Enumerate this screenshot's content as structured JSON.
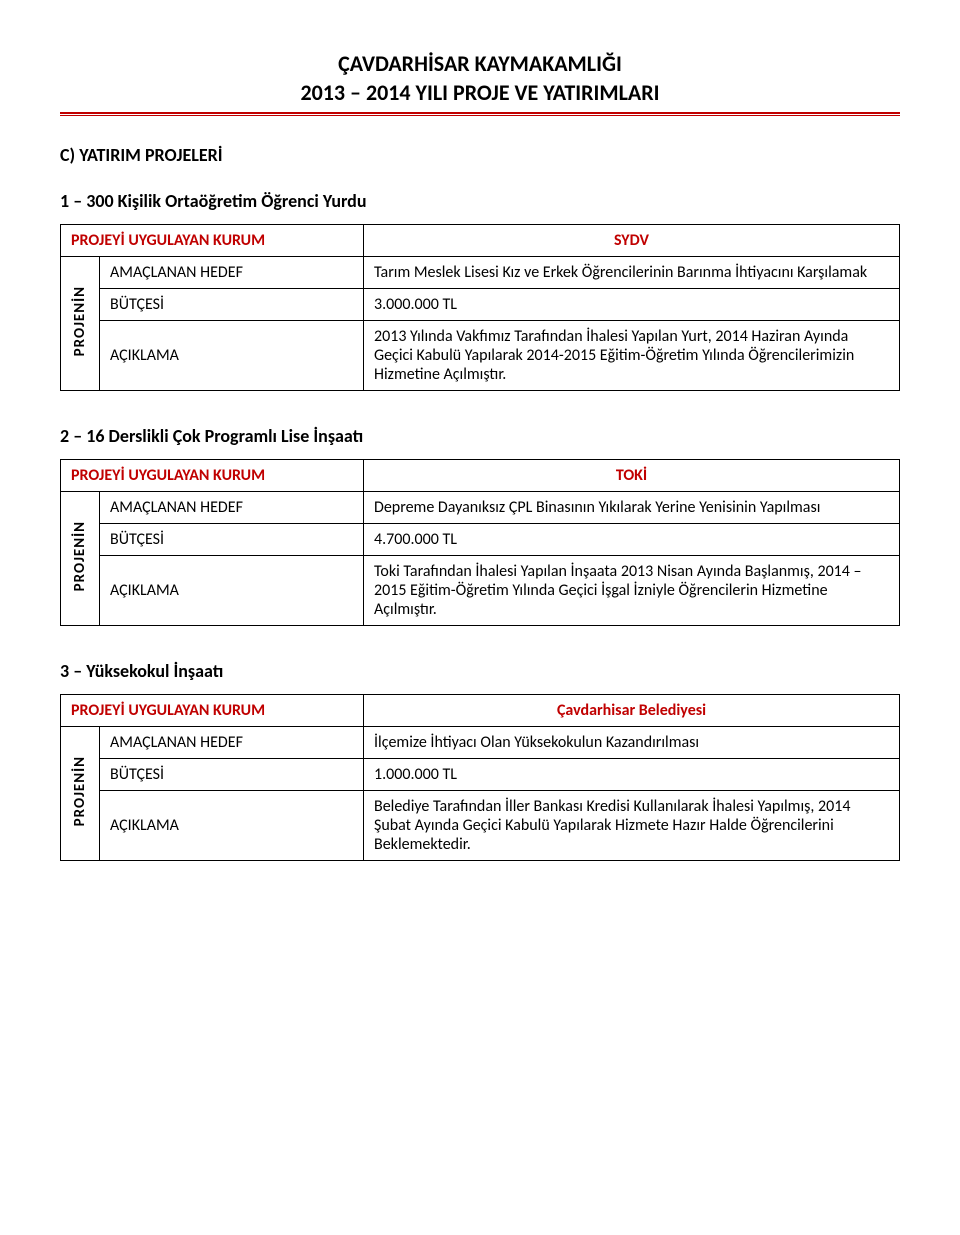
{
  "header": {
    "title": "ÇAVDARHİSAR KAYMAKAMLIĞI",
    "subtitle": "2013 – 2014 YILI PROJE VE YATIRIMLARI"
  },
  "section_heading": "C) YATIRIM PROJELERİ",
  "labels": {
    "org_label": "PROJEYİ UYGULAYAN KURUM",
    "vertical_label": "PROJENİN",
    "goal": "AMAÇLANAN HEDEF",
    "budget": "BÜTÇESİ",
    "desc": "AÇIKLAMA"
  },
  "projects": [
    {
      "heading": "1 – 300 Kişilik Ortaöğretim Öğrenci Yurdu",
      "org_value": "SYDV",
      "goal_value": "Tarım Meslek Lisesi Kız ve Erkek Öğrencilerinin Barınma İhtiyacını Karşılamak",
      "budget_value": "3.000.000 TL",
      "desc_value": "2013 Yılında Vakfımız Tarafından İhalesi Yapılan Yurt, 2014 Haziran Ayında Geçici Kabulü Yapılarak 2014-2015 Eğitim-Öğretim Yılında Öğrencilerimizin Hizmetine Açılmıştır."
    },
    {
      "heading": "2 – 16 Derslikli Çok Programlı Lise İnşaatı",
      "org_value": "TOKİ",
      "goal_value": "Depreme Dayanıksız ÇPL Binasının Yıkılarak Yerine Yenisinin Yapılması",
      "budget_value": "4.700.000 TL",
      "desc_value": "Toki Tarafından İhalesi Yapılan İnşaata 2013 Nisan Ayında Başlanmış, 2014 – 2015 Eğitim-Öğretim Yılında Geçici İşgal İzniyle Öğrencilerin Hizmetine Açılmıştır."
    },
    {
      "heading": "3 – Yüksekokul İnşaatı",
      "org_value": "Çavdarhisar Belediyesi",
      "goal_value": "İlçemize İhtiyacı Olan Yüksekokulun Kazandırılması",
      "budget_value": "1.000.000 TL",
      "desc_value": "Belediye Tarafından İller Bankası Kredisi Kullanılarak İhalesi Yapılmış, 2014 Şubat Ayında Geçici Kabulü Yapılarak Hizmete Hazır Halde Öğrencilerini Beklemektedir."
    }
  ],
  "colors": {
    "accent": "#c00000",
    "text": "#000000",
    "background": "#ffffff",
    "border": "#000000"
  },
  "typography": {
    "title_fontsize": 22,
    "heading_fontsize": 18,
    "body_fontsize": 16,
    "font_family": "Calibri"
  }
}
